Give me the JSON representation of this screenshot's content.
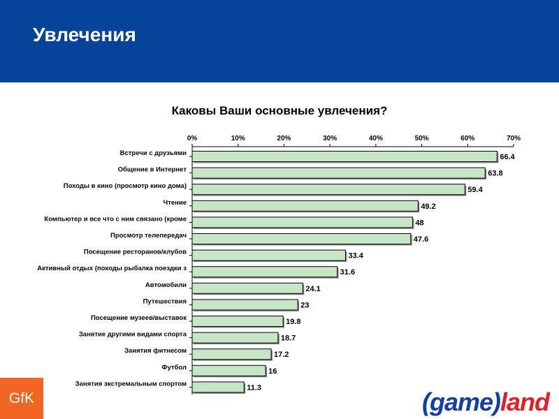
{
  "header": {
    "title": "Увлечения",
    "color": "#06449a"
  },
  "logos": {
    "gfk": "GfK",
    "gameland_part1": "(game)",
    "gameland_part2": "land"
  },
  "chart_data": {
    "type": "bar",
    "orientation": "horizontal",
    "title": "Каковы Ваши основные увлечения?",
    "xlabel": "",
    "ylabel": "",
    "xlim": [
      0,
      70
    ],
    "x_ticks": [
      "0%",
      "10%",
      "20%",
      "30%",
      "40%",
      "50%",
      "60%",
      "70%"
    ],
    "x_axis_position": "top",
    "grid": false,
    "bar_color": "#c6e6c6",
    "categories": [
      "Встречи с друзьями",
      "Общение в Интернет",
      "Походы в кино (просмотр кино дома)",
      "Чтение",
      "Компьютер и все что с ним связано (кроме",
      "Просмотр телепередач",
      "Посещение ресторанов/клубов",
      "Активный отдых (походы рыбалка поездки з",
      "Автомобили",
      "Путешествия",
      "Посещение музеев/выставок",
      "Занятие другими видами спорта",
      "Занятия фитнесом",
      "Футбол",
      "Занятия экстремальным спортом"
    ],
    "values": [
      66.4,
      63.8,
      59.4,
      49.2,
      48,
      47.6,
      33.4,
      31.6,
      24.1,
      23,
      19.8,
      18.7,
      17.2,
      16,
      11.3
    ],
    "value_labels": [
      "66.4",
      "63.8",
      "59.4",
      "49.2",
      "48",
      "47.6",
      "33.4",
      "31.6",
      "24.1",
      "23",
      "19.8",
      "18.7",
      "17.2",
      "16",
      "11.3"
    ]
  }
}
